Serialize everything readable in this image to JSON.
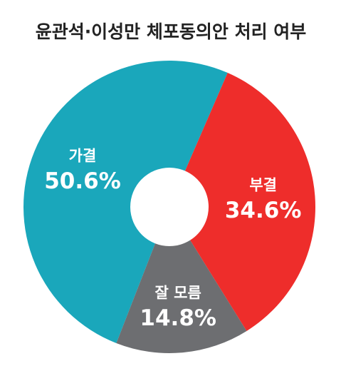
{
  "chart_data": {
    "type": "donut",
    "title": "윤관석·이성만 체포동의안 처리 여부",
    "categories": [
      "가결",
      "부결",
      "잘 모름"
    ],
    "values": [
      50.6,
      34.6,
      14.8
    ],
    "value_labels": [
      "50.6%",
      "34.6%",
      "14.8%"
    ],
    "colors": [
      "#1aa7bb",
      "#ee2d2b",
      "#6d6e71"
    ]
  }
}
